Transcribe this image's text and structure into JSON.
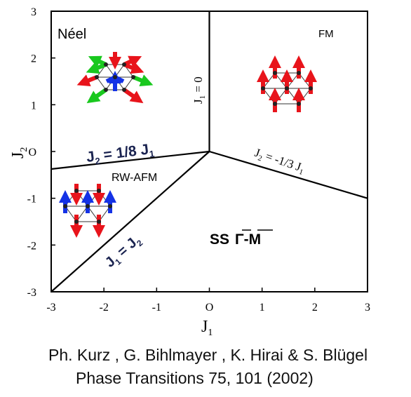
{
  "figure": {
    "x_axis": {
      "label": "J",
      "label_sub": "1",
      "range": [
        -3,
        3
      ],
      "ticks": [
        "-3",
        "-2",
        "-1",
        "O",
        "1",
        "2",
        "3"
      ]
    },
    "y_axis": {
      "label": "J",
      "label_sub": "2",
      "range": [
        -3,
        3
      ],
      "ticks": [
        "3",
        "2",
        "1",
        "O",
        "-1",
        "-2",
        "-3"
      ]
    },
    "phases": {
      "neel": "Néel",
      "fm": "FM",
      "rw_afm": "RW-AFM",
      "ss": "SS",
      "ss_q": "Γ-M"
    },
    "boundaries": {
      "neel_fm": {
        "lhs": "J",
        "lhs_sub": "1",
        "rhs": " = 0"
      },
      "neel_rw": {
        "lhs": "J",
        "lhs_sub": "2",
        "rhs": " = 1/8 J",
        "rhs_sub": "1"
      },
      "fm_ss": {
        "lhs": "J",
        "lhs_sub": "2",
        "rhs": " = -1/3 J",
        "rhs_sub": "1"
      },
      "rw_ss": {
        "lhs": "J",
        "lhs_sub": "1",
        "rhs": " = J",
        "rhs_sub": "2"
      }
    },
    "phase_lines": [
      {
        "name": "J1 = 0",
        "from": [
          0,
          0
        ],
        "to": [
          0,
          3
        ]
      },
      {
        "name": "J2 = 1/8 J1",
        "from": [
          -3,
          -0.375
        ],
        "to": [
          0,
          0
        ]
      },
      {
        "name": "J2 = -1/3 J1",
        "from": [
          0,
          0
        ],
        "to": [
          3,
          -1
        ]
      },
      {
        "name": "J1 = J2",
        "from": [
          -3,
          -3
        ],
        "to": [
          0,
          0
        ]
      }
    ],
    "colors": {
      "frame": "#000000",
      "label_navy": "#1a2350",
      "spin_red": "#e8141b",
      "spin_green": "#19c81e",
      "spin_blue": "#1432e6"
    },
    "icons": [
      "neel-spin-texture-icon",
      "fm-spin-texture-icon",
      "rw-afm-spin-texture-icon"
    ]
  },
  "citation": {
    "authors": "Ph. Kurz , G. Bihlmayer , K. Hirai & S. Blügel",
    "journal": "Phase Transitions 75, 101 (2002)"
  }
}
